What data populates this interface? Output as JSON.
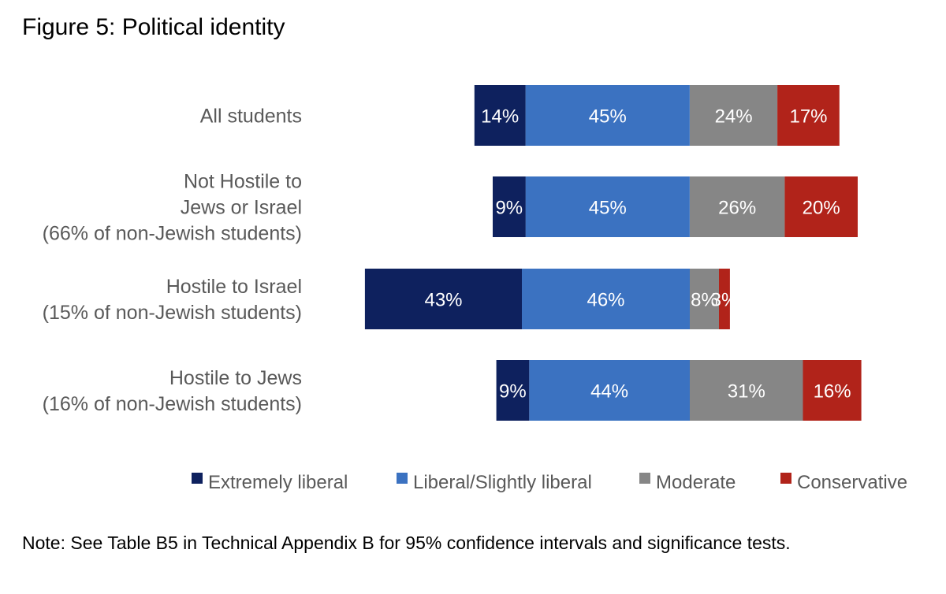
{
  "chart_data": {
    "type": "bar",
    "orientation": "horizontal",
    "stacked": true,
    "diverging": true,
    "title": "Figure 5: Political identity",
    "note": "Note: See Table B5 in Technical Appendix B for 95% confidence intervals and significance tests.",
    "categories": [
      [
        "All students"
      ],
      [
        "Not Hostile to",
        "Jews or Israel",
        "(66% of non-Jewish students)"
      ],
      [
        "Hostile to Israel",
        "(15% of non-Jewish students)"
      ],
      [
        "Hostile to Jews",
        "(16% of non-Jewish students)"
      ]
    ],
    "series": [
      {
        "name": "Extremely liberal",
        "color": "#0E215E",
        "side": "left",
        "values": [
          14,
          9,
          43,
          9
        ],
        "labels": [
          "14%",
          "9%",
          "43%",
          "9%"
        ]
      },
      {
        "name": "Liberal/Slightly liberal",
        "color": "#3B72C1",
        "side": "left",
        "values": [
          45,
          45,
          46,
          44
        ],
        "labels": [
          "45%",
          "45%",
          "46%",
          "44%"
        ]
      },
      {
        "name": "Moderate",
        "color": "#868686",
        "side": "right",
        "values": [
          24,
          26,
          8,
          31
        ],
        "labels": [
          "24%",
          "26%",
          "8%",
          "31%"
        ]
      },
      {
        "name": "Conservative",
        "color": "#B1231A",
        "side": "right",
        "values": [
          17,
          20,
          3,
          16
        ],
        "labels": [
          "17%",
          "20%",
          "3%",
          "16%"
        ]
      }
    ],
    "xlabel": "",
    "ylabel": "",
    "grid": false,
    "legend_position": "bottom-right"
  }
}
